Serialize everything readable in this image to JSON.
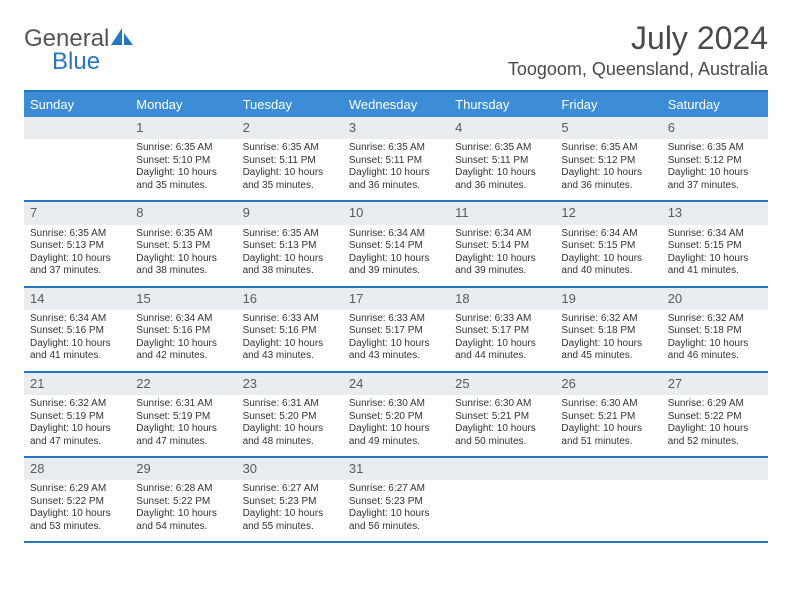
{
  "logo": {
    "main": "General",
    "sub": "Blue"
  },
  "title": "July 2024",
  "location": "Toogoom, Queensland, Australia",
  "colors": {
    "header_blue": "#3c8dd6",
    "rule_blue": "#2676c0",
    "daynum_bg": "#e9edf0",
    "text": "#333333",
    "logo_blue": "#2676c0",
    "logo_gray": "#555555",
    "white": "#ffffff"
  },
  "typography": {
    "title_fontsize": 32,
    "location_fontsize": 18,
    "dayheader_fontsize": 13,
    "daynum_fontsize": 13,
    "body_fontsize": 10
  },
  "dayNames": [
    "Sunday",
    "Monday",
    "Tuesday",
    "Wednesday",
    "Thursday",
    "Friday",
    "Saturday"
  ],
  "weeks": [
    [
      null,
      {
        "n": "1",
        "sr": "Sunrise: 6:35 AM",
        "ss": "Sunset: 5:10 PM",
        "d1": "Daylight: 10 hours",
        "d2": "and 35 minutes."
      },
      {
        "n": "2",
        "sr": "Sunrise: 6:35 AM",
        "ss": "Sunset: 5:11 PM",
        "d1": "Daylight: 10 hours",
        "d2": "and 35 minutes."
      },
      {
        "n": "3",
        "sr": "Sunrise: 6:35 AM",
        "ss": "Sunset: 5:11 PM",
        "d1": "Daylight: 10 hours",
        "d2": "and 36 minutes."
      },
      {
        "n": "4",
        "sr": "Sunrise: 6:35 AM",
        "ss": "Sunset: 5:11 PM",
        "d1": "Daylight: 10 hours",
        "d2": "and 36 minutes."
      },
      {
        "n": "5",
        "sr": "Sunrise: 6:35 AM",
        "ss": "Sunset: 5:12 PM",
        "d1": "Daylight: 10 hours",
        "d2": "and 36 minutes."
      },
      {
        "n": "6",
        "sr": "Sunrise: 6:35 AM",
        "ss": "Sunset: 5:12 PM",
        "d1": "Daylight: 10 hours",
        "d2": "and 37 minutes."
      }
    ],
    [
      {
        "n": "7",
        "sr": "Sunrise: 6:35 AM",
        "ss": "Sunset: 5:13 PM",
        "d1": "Daylight: 10 hours",
        "d2": "and 37 minutes."
      },
      {
        "n": "8",
        "sr": "Sunrise: 6:35 AM",
        "ss": "Sunset: 5:13 PM",
        "d1": "Daylight: 10 hours",
        "d2": "and 38 minutes."
      },
      {
        "n": "9",
        "sr": "Sunrise: 6:35 AM",
        "ss": "Sunset: 5:13 PM",
        "d1": "Daylight: 10 hours",
        "d2": "and 38 minutes."
      },
      {
        "n": "10",
        "sr": "Sunrise: 6:34 AM",
        "ss": "Sunset: 5:14 PM",
        "d1": "Daylight: 10 hours",
        "d2": "and 39 minutes."
      },
      {
        "n": "11",
        "sr": "Sunrise: 6:34 AM",
        "ss": "Sunset: 5:14 PM",
        "d1": "Daylight: 10 hours",
        "d2": "and 39 minutes."
      },
      {
        "n": "12",
        "sr": "Sunrise: 6:34 AM",
        "ss": "Sunset: 5:15 PM",
        "d1": "Daylight: 10 hours",
        "d2": "and 40 minutes."
      },
      {
        "n": "13",
        "sr": "Sunrise: 6:34 AM",
        "ss": "Sunset: 5:15 PM",
        "d1": "Daylight: 10 hours",
        "d2": "and 41 minutes."
      }
    ],
    [
      {
        "n": "14",
        "sr": "Sunrise: 6:34 AM",
        "ss": "Sunset: 5:16 PM",
        "d1": "Daylight: 10 hours",
        "d2": "and 41 minutes."
      },
      {
        "n": "15",
        "sr": "Sunrise: 6:34 AM",
        "ss": "Sunset: 5:16 PM",
        "d1": "Daylight: 10 hours",
        "d2": "and 42 minutes."
      },
      {
        "n": "16",
        "sr": "Sunrise: 6:33 AM",
        "ss": "Sunset: 5:16 PM",
        "d1": "Daylight: 10 hours",
        "d2": "and 43 minutes."
      },
      {
        "n": "17",
        "sr": "Sunrise: 6:33 AM",
        "ss": "Sunset: 5:17 PM",
        "d1": "Daylight: 10 hours",
        "d2": "and 43 minutes."
      },
      {
        "n": "18",
        "sr": "Sunrise: 6:33 AM",
        "ss": "Sunset: 5:17 PM",
        "d1": "Daylight: 10 hours",
        "d2": "and 44 minutes."
      },
      {
        "n": "19",
        "sr": "Sunrise: 6:32 AM",
        "ss": "Sunset: 5:18 PM",
        "d1": "Daylight: 10 hours",
        "d2": "and 45 minutes."
      },
      {
        "n": "20",
        "sr": "Sunrise: 6:32 AM",
        "ss": "Sunset: 5:18 PM",
        "d1": "Daylight: 10 hours",
        "d2": "and 46 minutes."
      }
    ],
    [
      {
        "n": "21",
        "sr": "Sunrise: 6:32 AM",
        "ss": "Sunset: 5:19 PM",
        "d1": "Daylight: 10 hours",
        "d2": "and 47 minutes."
      },
      {
        "n": "22",
        "sr": "Sunrise: 6:31 AM",
        "ss": "Sunset: 5:19 PM",
        "d1": "Daylight: 10 hours",
        "d2": "and 47 minutes."
      },
      {
        "n": "23",
        "sr": "Sunrise: 6:31 AM",
        "ss": "Sunset: 5:20 PM",
        "d1": "Daylight: 10 hours",
        "d2": "and 48 minutes."
      },
      {
        "n": "24",
        "sr": "Sunrise: 6:30 AM",
        "ss": "Sunset: 5:20 PM",
        "d1": "Daylight: 10 hours",
        "d2": "and 49 minutes."
      },
      {
        "n": "25",
        "sr": "Sunrise: 6:30 AM",
        "ss": "Sunset: 5:21 PM",
        "d1": "Daylight: 10 hours",
        "d2": "and 50 minutes."
      },
      {
        "n": "26",
        "sr": "Sunrise: 6:30 AM",
        "ss": "Sunset: 5:21 PM",
        "d1": "Daylight: 10 hours",
        "d2": "and 51 minutes."
      },
      {
        "n": "27",
        "sr": "Sunrise: 6:29 AM",
        "ss": "Sunset: 5:22 PM",
        "d1": "Daylight: 10 hours",
        "d2": "and 52 minutes."
      }
    ],
    [
      {
        "n": "28",
        "sr": "Sunrise: 6:29 AM",
        "ss": "Sunset: 5:22 PM",
        "d1": "Daylight: 10 hours",
        "d2": "and 53 minutes."
      },
      {
        "n": "29",
        "sr": "Sunrise: 6:28 AM",
        "ss": "Sunset: 5:22 PM",
        "d1": "Daylight: 10 hours",
        "d2": "and 54 minutes."
      },
      {
        "n": "30",
        "sr": "Sunrise: 6:27 AM",
        "ss": "Sunset: 5:23 PM",
        "d1": "Daylight: 10 hours",
        "d2": "and 55 minutes."
      },
      {
        "n": "31",
        "sr": "Sunrise: 6:27 AM",
        "ss": "Sunset: 5:23 PM",
        "d1": "Daylight: 10 hours",
        "d2": "and 56 minutes."
      },
      null,
      null,
      null
    ]
  ]
}
